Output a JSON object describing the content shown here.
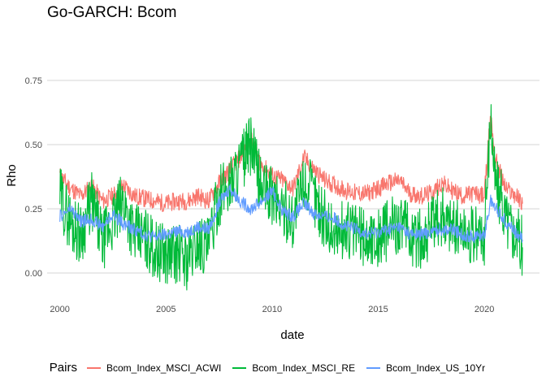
{
  "chart_data": {
    "type": "line",
    "title": "Go-GARCH: Bcom",
    "xlabel": "date",
    "ylabel": "Rho",
    "xlim": [
      1999.4,
      2022.6
    ],
    "ylim": [
      -0.095,
      0.905
    ],
    "x_ticks": [
      2000,
      2005,
      2010,
      2015,
      2020
    ],
    "x_tick_labels": [
      "2000",
      "2005",
      "2010",
      "2015",
      "2020"
    ],
    "y_ticks": [
      0,
      0.25,
      0.5,
      0.75
    ],
    "y_tick_labels": [
      "0.00",
      "0.25",
      "0.50",
      "0.75"
    ],
    "grid": true,
    "legend_title": "Pairs",
    "legend_position": "bottom",
    "series": [
      {
        "name": "Bcom_Index_MSCI_ACWI",
        "color": "#F8766D",
        "x": [
          2000.0,
          2000.5,
          2001.0,
          2001.5,
          2002.0,
          2002.5,
          2003.0,
          2003.5,
          2004.0,
          2004.5,
          2005.0,
          2005.5,
          2006.0,
          2006.5,
          2007.0,
          2007.5,
          2008.0,
          2008.5,
          2009.0,
          2009.5,
          2010.0,
          2010.5,
          2011.0,
          2011.5,
          2012.0,
          2012.5,
          2013.0,
          2013.5,
          2014.0,
          2014.5,
          2015.0,
          2015.5,
          2016.0,
          2016.5,
          2017.0,
          2017.5,
          2018.0,
          2018.5,
          2019.0,
          2019.5,
          2020.0,
          2020.3,
          2020.5,
          2021.0,
          2021.5,
          2021.8
        ],
        "values": [
          0.38,
          0.33,
          0.3,
          0.34,
          0.28,
          0.3,
          0.34,
          0.3,
          0.29,
          0.28,
          0.27,
          0.28,
          0.28,
          0.3,
          0.28,
          0.35,
          0.4,
          0.45,
          0.52,
          0.42,
          0.38,
          0.36,
          0.33,
          0.45,
          0.4,
          0.36,
          0.34,
          0.32,
          0.31,
          0.31,
          0.33,
          0.35,
          0.36,
          0.31,
          0.3,
          0.31,
          0.35,
          0.32,
          0.3,
          0.31,
          0.3,
          0.62,
          0.45,
          0.33,
          0.3,
          0.27
        ]
      },
      {
        "name": "Bcom_Index_MSCI_RE",
        "color": "#00BA38",
        "x": [
          2000.0,
          2000.5,
          2001.0,
          2001.5,
          2002.0,
          2002.5,
          2003.0,
          2003.5,
          2004.0,
          2004.5,
          2005.0,
          2005.5,
          2006.0,
          2006.5,
          2007.0,
          2007.5,
          2008.0,
          2008.5,
          2009.0,
          2009.5,
          2010.0,
          2010.5,
          2011.0,
          2011.5,
          2012.0,
          2012.5,
          2013.0,
          2013.5,
          2014.0,
          2014.5,
          2015.0,
          2015.5,
          2016.0,
          2016.5,
          2017.0,
          2017.5,
          2018.0,
          2018.5,
          2019.0,
          2019.5,
          2020.0,
          2020.3,
          2020.5,
          2021.0,
          2021.5,
          2021.8
        ],
        "values": [
          0.3,
          0.2,
          0.15,
          0.28,
          0.12,
          0.2,
          0.28,
          0.15,
          0.14,
          0.09,
          0.07,
          0.08,
          0.05,
          0.12,
          0.1,
          0.3,
          0.35,
          0.42,
          0.5,
          0.33,
          0.3,
          0.25,
          0.21,
          0.36,
          0.3,
          0.2,
          0.15,
          0.17,
          0.16,
          0.13,
          0.14,
          0.17,
          0.2,
          0.14,
          0.13,
          0.18,
          0.22,
          0.19,
          0.16,
          0.14,
          0.15,
          0.62,
          0.37,
          0.22,
          0.15,
          0.1
        ]
      },
      {
        "name": "Bcom_Index_US_10Yr",
        "color": "#619CFF",
        "x": [
          2000.0,
          2000.5,
          2001.0,
          2001.5,
          2002.0,
          2002.5,
          2003.0,
          2003.5,
          2004.0,
          2004.5,
          2005.0,
          2005.5,
          2006.0,
          2006.5,
          2007.0,
          2007.5,
          2008.0,
          2008.5,
          2009.0,
          2009.5,
          2010.0,
          2010.5,
          2011.0,
          2011.5,
          2012.0,
          2012.5,
          2013.0,
          2013.5,
          2014.0,
          2014.5,
          2015.0,
          2015.5,
          2016.0,
          2016.5,
          2017.0,
          2017.5,
          2018.0,
          2018.5,
          2019.0,
          2019.5,
          2020.0,
          2020.3,
          2020.5,
          2021.0,
          2021.5,
          2021.8
        ],
        "values": [
          0.22,
          0.25,
          0.2,
          0.21,
          0.18,
          0.23,
          0.19,
          0.17,
          0.15,
          0.14,
          0.15,
          0.16,
          0.16,
          0.18,
          0.17,
          0.27,
          0.33,
          0.28,
          0.25,
          0.28,
          0.32,
          0.24,
          0.22,
          0.27,
          0.23,
          0.22,
          0.21,
          0.18,
          0.17,
          0.15,
          0.16,
          0.17,
          0.18,
          0.15,
          0.15,
          0.16,
          0.17,
          0.17,
          0.15,
          0.14,
          0.15,
          0.28,
          0.26,
          0.2,
          0.16,
          0.13
        ]
      }
    ]
  }
}
